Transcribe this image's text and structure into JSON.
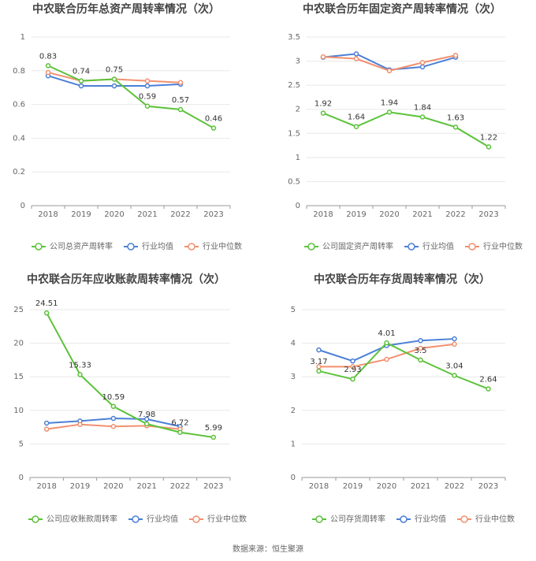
{
  "chart_data": [
    {
      "type": "line",
      "title": "中农联合历年总资产周转率情况（次）",
      "categories": [
        "2018",
        "2019",
        "2020",
        "2021",
        "2022",
        "2023"
      ],
      "series": [
        {
          "name": "公司总资产周转率",
          "color": "#5cc23a",
          "values": [
            0.83,
            0.74,
            0.75,
            0.59,
            0.57,
            0.46
          ]
        },
        {
          "name": "行业均值",
          "color": "#4b7fd6",
          "values": [
            0.77,
            0.71,
            0.71,
            0.71,
            0.72,
            null
          ]
        },
        {
          "name": "行业中位数",
          "color": "#f2906f",
          "values": [
            0.79,
            0.74,
            0.75,
            0.74,
            0.73,
            null
          ]
        }
      ],
      "ylim": [
        0,
        1
      ],
      "yticks": [
        0,
        0.2,
        0.4,
        0.6,
        0.8,
        1
      ],
      "grid": true
    },
    {
      "type": "line",
      "title": "中农联合历年固定资产周转率情况（次）",
      "categories": [
        "2018",
        "2019",
        "2020",
        "2021",
        "2022",
        "2023"
      ],
      "series": [
        {
          "name": "公司固定资产周转率",
          "color": "#5cc23a",
          "values": [
            1.92,
            1.64,
            1.94,
            1.84,
            1.63,
            1.22
          ]
        },
        {
          "name": "行业均值",
          "color": "#4b7fd6",
          "values": [
            3.08,
            3.15,
            2.82,
            2.88,
            3.08,
            null
          ]
        },
        {
          "name": "行业中位数",
          "color": "#f2906f",
          "values": [
            3.09,
            3.05,
            2.8,
            2.97,
            3.12,
            null
          ]
        }
      ],
      "ylim": [
        0,
        3.5
      ],
      "yticks": [
        0,
        0.5,
        1,
        1.5,
        2,
        2.5,
        3,
        3.5
      ],
      "grid": true
    },
    {
      "type": "line",
      "title": "中农联合历年应收账款周转率情况（次）",
      "categories": [
        "2018",
        "2019",
        "2020",
        "2021",
        "2022",
        "2023"
      ],
      "series": [
        {
          "name": "公司应收账款周转率",
          "color": "#5cc23a",
          "values": [
            24.51,
            15.33,
            10.59,
            7.98,
            6.72,
            5.99
          ]
        },
        {
          "name": "行业均值",
          "color": "#4b7fd6",
          "values": [
            8.1,
            8.4,
            8.8,
            8.7,
            7.6,
            null
          ]
        },
        {
          "name": "行业中位数",
          "color": "#f2906f",
          "values": [
            7.2,
            7.9,
            7.6,
            7.7,
            7.2,
            null
          ]
        }
      ],
      "ylim": [
        0,
        25
      ],
      "yticks": [
        0,
        5,
        10,
        15,
        20,
        25
      ],
      "grid": true
    },
    {
      "type": "line",
      "title": "中农联合历年存货周转率情况（次）",
      "categories": [
        "2018",
        "2019",
        "2020",
        "2021",
        "2022",
        "2023"
      ],
      "series": [
        {
          "name": "公司存货周转率",
          "color": "#5cc23a",
          "values": [
            3.17,
            2.93,
            4.01,
            3.5,
            3.04,
            2.64
          ]
        },
        {
          "name": "行业均值",
          "color": "#4b7fd6",
          "values": [
            3.8,
            3.47,
            3.93,
            4.08,
            4.13,
            null
          ]
        },
        {
          "name": "行业中位数",
          "color": "#f2906f",
          "values": [
            3.3,
            3.3,
            3.52,
            3.85,
            3.97,
            null
          ]
        }
      ],
      "ylim": [
        0,
        5
      ],
      "yticks": [
        0,
        1,
        2,
        3,
        4,
        5
      ],
      "grid": true
    }
  ],
  "source": "数据来源：恒生聚源"
}
